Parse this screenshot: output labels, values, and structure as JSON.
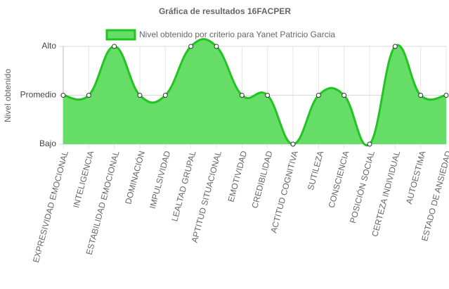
{
  "chart_data": {
    "type": "line",
    "title": "Gráfica de resultados 16FACPER",
    "y_label": "Nivel obtenido",
    "categories": [
      "EXPRESIVIDAD EMOCIONAL",
      "INTELIGENCIA",
      "ESTABILIDAD EMOCIONAL",
      "DOMINACIÓN",
      "IMPULSIVIDAD",
      "LEALTAD GRUPAL",
      "APTITUD SITUACIONAL",
      "EMOTIVIDAD",
      "CREDIBILIDAD",
      "ACTITUD COGNITIVA",
      "SUTILEZA",
      "CONSCIENCIA",
      "POSICIÓN SOCIAL",
      "CERTEZA INDIVIDUAL",
      "AUTOESTIMA",
      "ESTADO DE ANSIEDAD"
    ],
    "series": [
      {
        "name": "Nivel obtenido por criterio para Yanet Patricio Garcia",
        "color": "#22c422",
        "fill": "#66dd66",
        "values": [
          2,
          2,
          3,
          2,
          2,
          3,
          3,
          2,
          2,
          1,
          2,
          2,
          1,
          3,
          2,
          2
        ]
      }
    ],
    "ylim": [
      1,
      3
    ],
    "yticks": [
      {
        "value": 1,
        "label": "Bajo"
      },
      {
        "value": 2,
        "label": "Promedio"
      },
      {
        "value": 3,
        "label": "Alto"
      }
    ],
    "grid": true,
    "legend": "top"
  }
}
